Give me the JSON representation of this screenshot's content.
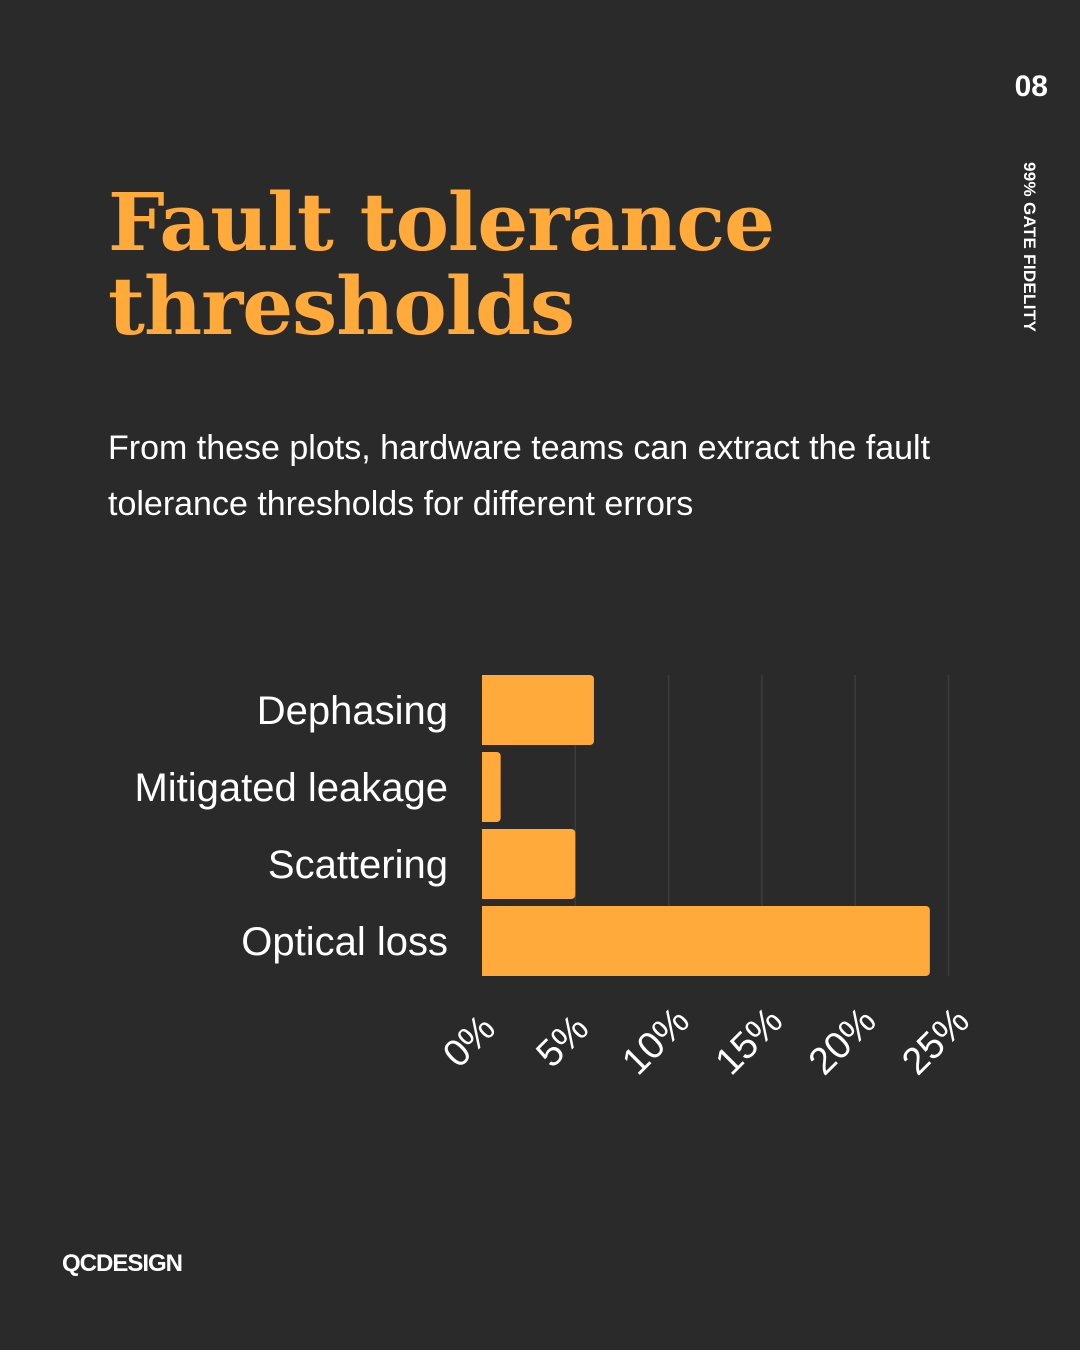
{
  "page_number": "08",
  "side_label": "99% GATE FIDELITY",
  "title_lines": [
    "Fault tolerance",
    "thresholds"
  ],
  "subtitle": "From these plots, hardware teams can extract the fault tolerance thresholds for different errors",
  "logo": "QCDESIGN",
  "colors": {
    "background": "#2a2a2a",
    "accent": "#FFAA3B",
    "grid": "#3c3c3c",
    "text": "#ffffff"
  },
  "chart_data": {
    "type": "bar",
    "orientation": "horizontal",
    "categories": [
      "Dephasing",
      "Mitigated leakage",
      "Scattering",
      "Optical loss"
    ],
    "values": [
      6,
      1,
      5,
      24
    ],
    "xlim": [
      0,
      25
    ],
    "xticks": [
      "0%",
      "5%",
      "10%",
      "15%",
      "20%",
      "25%"
    ],
    "xtick_values": [
      0,
      5,
      10,
      15,
      20,
      25
    ],
    "grid": "vertical",
    "bar_color": "#FFAA3B"
  }
}
